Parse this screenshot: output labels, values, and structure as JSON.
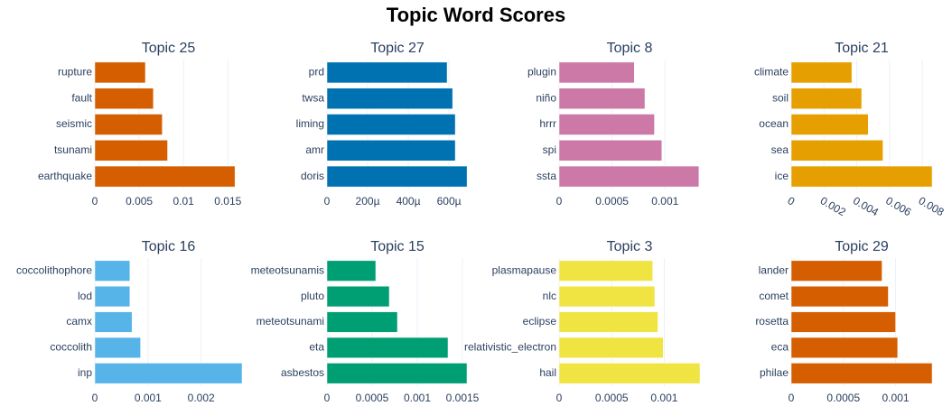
{
  "title": "Topic Word Scores",
  "chart_data": [
    {
      "type": "bar",
      "orientation": "h",
      "title": "Topic 25",
      "categories": [
        "rupture",
        "fault",
        "seismic",
        "tsunami",
        "earthquake"
      ],
      "values": [
        0.0057,
        0.0066,
        0.0076,
        0.0082,
        0.0158
      ],
      "color": "#D55E00",
      "xlim": [
        0,
        0.0166
      ],
      "xticks": [
        0,
        0.005,
        0.01,
        0.015
      ],
      "grid": true
    },
    {
      "type": "bar",
      "orientation": "h",
      "title": "Topic 27",
      "categories": [
        "prd",
        "twsa",
        "liming",
        "amr",
        "doris"
      ],
      "values": [
        0.000591,
        0.000618,
        0.000631,
        0.000631,
        0.000689
      ],
      "color": "#0072B2",
      "xlim": [
        0,
        0.000693
      ],
      "xticks": [
        0,
        {
          "value": 0.0002,
          "label": "200µ"
        },
        {
          "value": 0.0004,
          "label": "400µ"
        },
        {
          "value": 0.0006,
          "label": "600µ"
        }
      ],
      "grid": true
    },
    {
      "type": "bar",
      "orientation": "h",
      "title": "Topic 8",
      "categories": [
        "plugin",
        "niño",
        "hrrr",
        "spi",
        "ssta"
      ],
      "values": [
        0.00071,
        0.00081,
        0.0009,
        0.00097,
        0.00132
      ],
      "color": "#CC79A7",
      "xlim": [
        0,
        0.00133
      ],
      "xticks": [
        0,
        0.0005,
        0.001
      ],
      "grid": true
    },
    {
      "type": "bar",
      "orientation": "h",
      "title": "Topic 21",
      "categories": [
        "climate",
        "soil",
        "ocean",
        "sea",
        "ice"
      ],
      "values": [
        0.0037,
        0.0043,
        0.0047,
        0.0056,
        0.0086
      ],
      "color": "#E69F00",
      "xlim": [
        0,
        0.0086
      ],
      "xticks": [
        0,
        0.002,
        0.004,
        0.006,
        0.008
      ],
      "grid": true
    },
    {
      "type": "bar",
      "orientation": "h",
      "title": "Topic 16",
      "categories": [
        "coccolithophore",
        "lod",
        "camx",
        "coccolith",
        "inp"
      ],
      "values": [
        0.00066,
        0.00066,
        0.0007,
        0.00086,
        0.00277
      ],
      "color": "#56B4E9",
      "xlim": [
        0,
        0.00277
      ],
      "xticks": [
        0,
        0.001,
        0.002
      ],
      "grid": true
    },
    {
      "type": "bar",
      "orientation": "h",
      "title": "Topic 15",
      "categories": [
        "meteotsunamis",
        "pluto",
        "meteotsunami",
        "eta",
        "asbestos"
      ],
      "values": [
        0.00054,
        0.00069,
        0.00078,
        0.00134,
        0.00155
      ],
      "color": "#009E73",
      "xlim": [
        0,
        0.00156
      ],
      "xticks": [
        0,
        0.0005,
        0.001,
        0.0015
      ],
      "grid": true
    },
    {
      "type": "bar",
      "orientation": "h",
      "title": "Topic 3",
      "categories": [
        "plasmapause",
        "nlc",
        "eclipse",
        "relativistic_electron",
        "hail"
      ],
      "values": [
        0.00089,
        0.00091,
        0.00094,
        0.00099,
        0.00134
      ],
      "color": "#F0E442",
      "xlim": [
        0,
        0.00134
      ],
      "xticks": [
        0,
        0.0005,
        0.001
      ],
      "grid": true
    },
    {
      "type": "bar",
      "orientation": "h",
      "title": "Topic 29",
      "categories": [
        "lander",
        "comet",
        "rosetta",
        "eca",
        "philae"
      ],
      "values": [
        0.00087,
        0.00093,
        0.001,
        0.00102,
        0.00135
      ],
      "color": "#D55E00",
      "xlim": [
        0,
        0.00135
      ],
      "xticks": [
        0,
        0.0005,
        0.001
      ],
      "grid": true
    }
  ]
}
